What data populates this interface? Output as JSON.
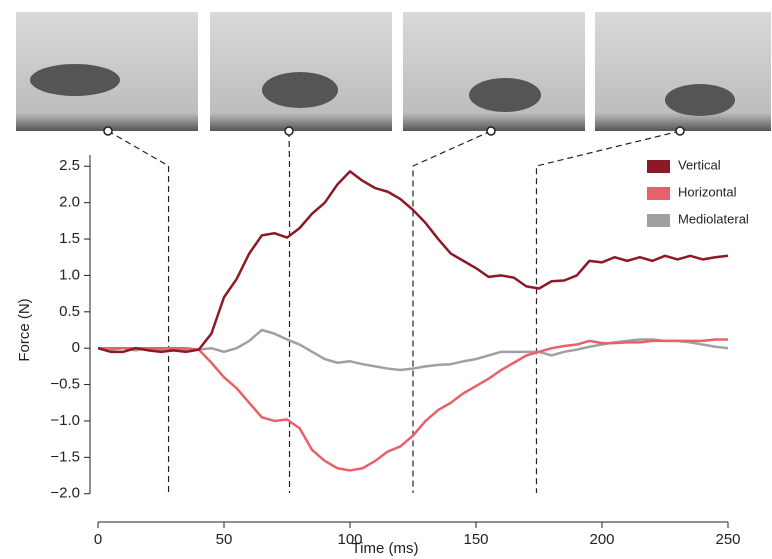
{
  "chart_data": {
    "type": "line",
    "xlabel": "Time (ms)",
    "ylabel": "Force (N)",
    "x": [
      0,
      5,
      10,
      15,
      20,
      25,
      30,
      35,
      40,
      45,
      50,
      55,
      60,
      65,
      70,
      75,
      80,
      85,
      90,
      95,
      100,
      105,
      110,
      115,
      120,
      125,
      130,
      135,
      140,
      145,
      150,
      155,
      160,
      165,
      170,
      175,
      180,
      185,
      190,
      195,
      200,
      205,
      210,
      215,
      220,
      225,
      230,
      235,
      240,
      245,
      250
    ],
    "series": [
      {
        "name": "Vertical",
        "color": "#8b1a26",
        "values": [
          0,
          -0.05,
          -0.05,
          0,
          -0.03,
          -0.05,
          -0.03,
          -0.05,
          -0.02,
          0.2,
          0.7,
          0.95,
          1.3,
          1.55,
          1.58,
          1.52,
          1.65,
          1.85,
          2.0,
          2.25,
          2.43,
          2.3,
          2.2,
          2.15,
          2.05,
          1.9,
          1.72,
          1.5,
          1.3,
          1.2,
          1.1,
          0.98,
          1.0,
          0.97,
          0.85,
          0.82,
          0.92,
          0.93,
          1.0,
          1.2,
          1.18,
          1.25,
          1.2,
          1.25,
          1.2,
          1.27,
          1.22,
          1.27,
          1.22,
          1.25,
          1.27
        ]
      },
      {
        "name": "Horizontal",
        "color": "#e8616a",
        "values": [
          0,
          0,
          0,
          0,
          0,
          0,
          0,
          0,
          -0.02,
          -0.2,
          -0.4,
          -0.55,
          -0.75,
          -0.95,
          -1.0,
          -0.98,
          -1.1,
          -1.4,
          -1.55,
          -1.65,
          -1.68,
          -1.65,
          -1.55,
          -1.42,
          -1.35,
          -1.2,
          -1.0,
          -0.85,
          -0.75,
          -0.62,
          -0.52,
          -0.42,
          -0.3,
          -0.2,
          -0.1,
          -0.05,
          0,
          0.03,
          0.05,
          0.1,
          0.07,
          0.07,
          0.08,
          0.08,
          0.1,
          0.1,
          0.1,
          0.1,
          0.1,
          0.12,
          0.12
        ]
      },
      {
        "name": "Mediolateral",
        "color": "#a0a0a0",
        "values": [
          0,
          -0.02,
          0,
          -0.03,
          0,
          -0.02,
          0,
          -0.02,
          -0.02,
          0,
          -0.05,
          0,
          0.1,
          0.25,
          0.2,
          0.12,
          0.05,
          -0.05,
          -0.15,
          -0.2,
          -0.18,
          -0.22,
          -0.25,
          -0.28,
          -0.3,
          -0.28,
          -0.25,
          -0.23,
          -0.22,
          -0.18,
          -0.15,
          -0.1,
          -0.05,
          -0.05,
          -0.05,
          -0.05,
          -0.1,
          -0.05,
          -0.02,
          0.02,
          0.05,
          0.08,
          0.1,
          0.12,
          0.12,
          0.1,
          0.1,
          0.08,
          0.05,
          0.02,
          0
        ]
      }
    ],
    "event_times": [
      28,
      76,
      125,
      174
    ],
    "xlim": [
      0,
      250
    ],
    "xticks": [
      0,
      50,
      100,
      150,
      200,
      250
    ],
    "ylim": [
      -2.1,
      2.6
    ],
    "yticks": [
      2.5,
      {
        "value": 2,
        "label": "2.0"
      },
      1.5,
      {
        "value": 1,
        "label": "1.0"
      },
      0.5,
      0,
      {
        "value": -0.5,
        "label": "−0.5"
      },
      {
        "value": -1,
        "label": "−1.0"
      },
      {
        "value": -1.5,
        "label": "−1.5"
      },
      {
        "value": -2,
        "label": "−2.0"
      }
    ],
    "legend": "upper right"
  }
}
